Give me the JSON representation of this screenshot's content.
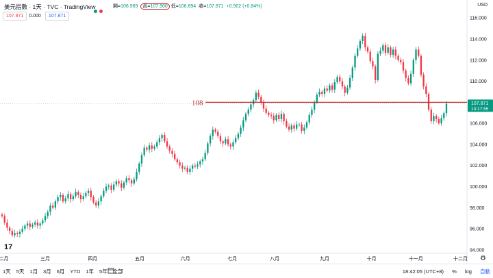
{
  "header": {
    "title": "美元指數 · 1天 · TVC · TradingView",
    "dot_colors": [
      "#089981",
      "#f23645"
    ],
    "ohlc": [
      {
        "label": "開",
        "value": "106.969"
      },
      {
        "label": "高",
        "value": "107.900",
        "highlighted": true
      },
      {
        "label": "低",
        "value": "106.894"
      },
      {
        "label": "收",
        "value": "107.871"
      }
    ],
    "change": "+0.902 (+0.84%)",
    "sell_price": "107.871",
    "spread": "0.000",
    "buy_price": "107.871"
  },
  "axis": {
    "currency": "USD",
    "last_price": "107.871",
    "countdown": "13:17:55",
    "annotation": "108"
  },
  "bottom": {
    "ranges": [
      "1天",
      "5天",
      "1月",
      "3月",
      "6月",
      "YTD",
      "1年",
      "5年",
      "全部"
    ],
    "time": "18:42:05 (UTC+8)",
    "percent": "%",
    "log": "log",
    "auto": "自動"
  },
  "colors": {
    "up": "#089981",
    "down": "#f23645",
    "line": "#c62828"
  },
  "chart_data": {
    "type": "candlestick",
    "y_ticks": [
      "94.000",
      "96.000",
      "98.000",
      "100.000",
      "102.000",
      "104.000",
      "106.000",
      "108.000",
      "110.000",
      "112.000",
      "114.000",
      "116.000"
    ],
    "x_ticks": [
      "二月",
      "三月",
      "四月",
      "五月",
      "六月",
      "七月",
      "八月",
      "九月",
      "十月",
      "十一月",
      "十二月"
    ],
    "ylim": [
      93.8,
      116.4
    ],
    "horizontal_line": 108,
    "close": [
      97.2,
      96.6,
      96.1,
      95.8,
      95.4,
      95.6,
      95.5,
      95.7,
      96.0,
      96.3,
      96.5,
      96.2,
      96.4,
      96.6,
      96.3,
      96.5,
      96.8,
      97.2,
      97.6,
      98.2,
      98.0,
      98.6,
      99.0,
      99.2,
      98.6,
      98.9,
      99.3,
      98.8,
      99.1,
      99.5,
      99.2,
      98.8,
      99.1,
      99.4,
      99.6,
      99.0,
      98.5,
      98.2,
      98.6,
      99.1,
      99.6,
      100.0,
      100.1,
      99.7,
      100.2,
      100.5,
      100.3,
      99.9,
      100.4,
      100.8,
      100.6,
      100.3,
      100.7,
      101.4,
      102.2,
      103.0,
      103.7,
      103.5,
      103.9,
      103.6,
      103.8,
      104.2,
      104.6,
      104.9,
      104.3,
      103.8,
      103.4,
      103.1,
      102.6,
      102.3,
      102.0,
      101.7,
      101.8,
      101.4,
      101.7,
      102.0,
      101.9,
      102.1,
      102.4,
      102.6,
      103.2,
      104.1,
      104.8,
      105.4,
      105.2,
      104.8,
      104.3,
      104.1,
      104.5,
      104.0,
      103.8,
      104.2,
      104.6,
      105.0,
      105.6,
      106.3,
      106.9,
      107.3,
      107.8,
      108.2,
      108.9,
      108.5,
      108.0,
      107.4,
      107.0,
      106.8,
      106.7,
      106.3,
      106.8,
      106.4,
      106.9,
      106.2,
      105.7,
      105.4,
      105.8,
      105.5,
      105.9,
      105.9,
      105.3,
      105.6,
      106.1,
      106.8,
      107.3,
      108.0,
      108.7,
      109.0,
      108.8,
      109.3,
      109.1,
      109.6,
      109.2,
      109.9,
      110.4,
      110.0,
      109.5,
      108.9,
      109.4,
      110.3,
      111.3,
      112.4,
      113.1,
      113.8,
      114.3,
      113.2,
      112.8,
      111.9,
      111.4,
      110.1,
      112.6,
      112.9,
      113.4,
      112.7,
      113.2,
      112.5,
      113.0,
      112.4,
      112.0,
      111.8,
      111.0,
      110.3,
      109.8,
      110.7,
      112.0,
      113.0,
      112.4,
      110.6,
      109.5,
      108.8,
      107.3,
      106.2,
      106.7,
      106.4,
      106.0,
      106.5,
      106.97,
      107.87
    ]
  }
}
